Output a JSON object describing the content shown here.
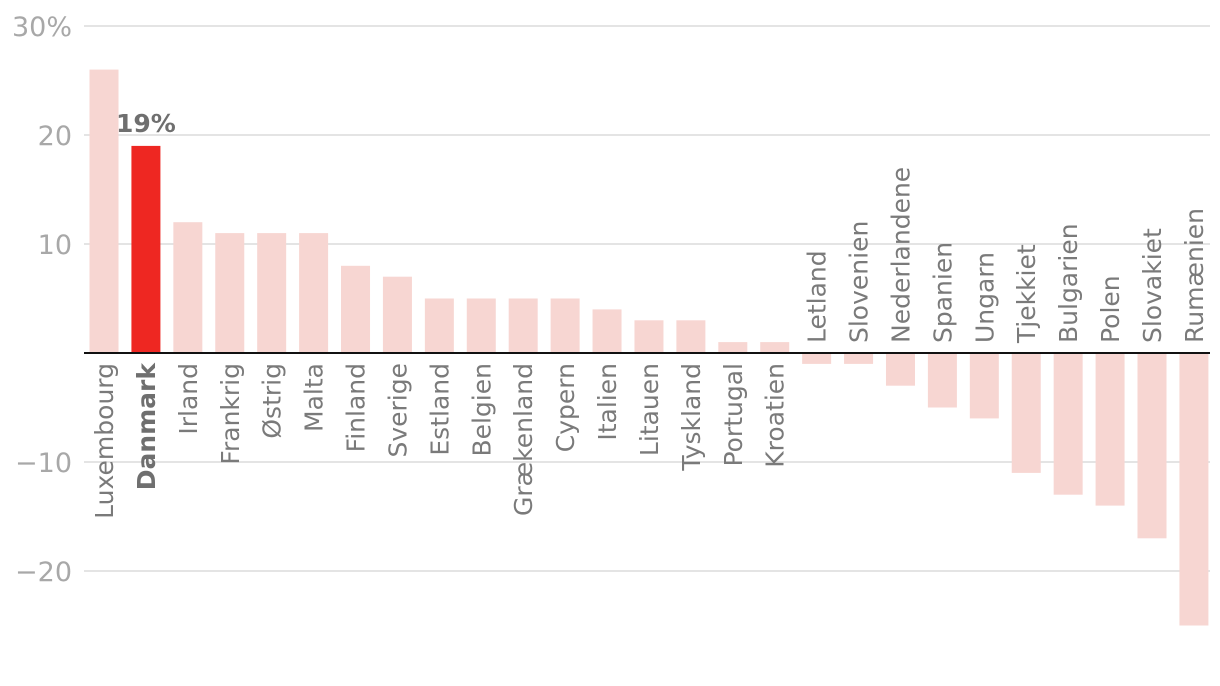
{
  "chart_data": {
    "type": "bar",
    "title": "",
    "xlabel": "",
    "ylabel": "",
    "ylim": [
      -30,
      30
    ],
    "yticks": [
      {
        "value": 30,
        "label": "30%"
      },
      {
        "value": 20,
        "label": "20"
      },
      {
        "value": 10,
        "label": "10"
      },
      {
        "value": -10,
        "label": "−10"
      },
      {
        "value": -20,
        "label": "−20"
      }
    ],
    "categories": [
      "Luxembourg",
      "Danmark",
      "Irland",
      "Frankrig",
      "Østrig",
      "Malta",
      "Finland",
      "Sverige",
      "Estland",
      "Belgien",
      "Grækenland",
      "Cypern",
      "Italien",
      "Litauen",
      "Tyskland",
      "Portugal",
      "Kroatien",
      "Letland",
      "Slovenien",
      "Nederlandene",
      "Spanien",
      "Ungarn",
      "Tjekkiet",
      "Bulgarien",
      "Polen",
      "Slovakiet",
      "Rumænien"
    ],
    "values": [
      26,
      19,
      12,
      11,
      11,
      11,
      8,
      7,
      5,
      5,
      5,
      5,
      4,
      3,
      3,
      1,
      1,
      -1,
      -1,
      -3,
      -5,
      -6,
      -11,
      -13,
      -14,
      -17,
      -25
    ],
    "highlight": {
      "category": "Danmark",
      "label": "19%"
    },
    "colors": {
      "bar": "#f7d6d2",
      "highlight": "#ee2722",
      "grid": "#dcdcdc",
      "zero_line": "#111111"
    }
  }
}
